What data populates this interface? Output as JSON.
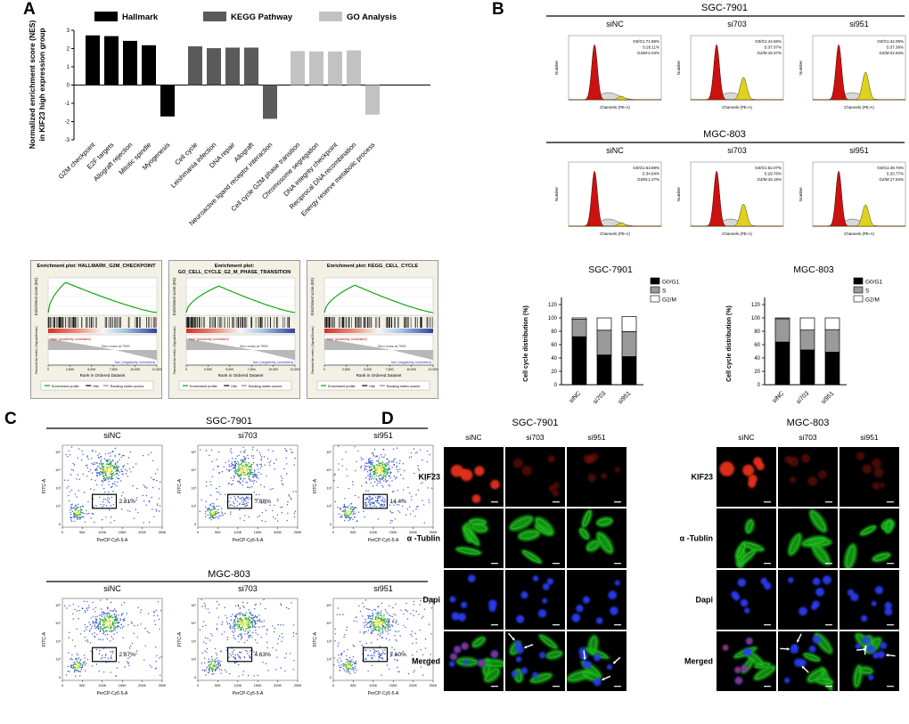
{
  "panelA": {
    "label": "A",
    "legend": [
      {
        "label": "Hallmark",
        "color": "#000000"
      },
      {
        "label": "KEGG Pathway",
        "color": "#5a5a5a"
      },
      {
        "label": "GO Analysis",
        "color": "#c2c2c2"
      }
    ],
    "ylabel_lines": [
      "Normalized enrichment score (NES)",
      "in KIF23 high expression group"
    ],
    "gsea": {
      "es_ylabel": "Enrichment score (ES)",
      "rank_ylabel": "Ranked list metric (Signal2Noise)",
      "xlabel": "Rank in Ordered Dataset",
      "zero_cross": "Zero cross at 7999",
      "pos_label": "'high' (positively correlated)",
      "neg_label": "'low' (negatively correlated)",
      "legend": [
        "Enrichment profile",
        "Hits",
        "Ranking metric scores"
      ],
      "xticks": [
        "0",
        "2,500",
        "5,000",
        "7,500",
        "10,000",
        "12,500"
      ],
      "plots": [
        {
          "title_lines": [
            "Enrichment plot: HALLMARK_G2M_CHECKPOINT"
          ],
          "peak": 0.16,
          "max_es": 0.66
        },
        {
          "title_lines": [
            "Enrichment plot:",
            "GO_CELL_CYCLE_G2_M_PHASE_TRANSITION"
          ],
          "peak": 0.3,
          "max_es": 0.58
        },
        {
          "title_lines": [
            "Enrichment plot: KEGG_CELL_CYCLE"
          ],
          "peak": 0.28,
          "max_es": 0.6
        }
      ]
    }
  },
  "panelB": {
    "label": "B",
    "hist_ylabel": "Number",
    "hist_xlabel": "Channels (PE-A)",
    "cell_lines": [
      {
        "name": "SGC-7901",
        "samples": [
          {
            "name": "siNC",
            "stats": [
              "G0/G1:71.89%",
              "S:26.11%",
              "G2/M:2.04%"
            ],
            "g0g1": 71.89,
            "s": 26.11,
            "g2m": 2.04
          },
          {
            "name": "si703",
            "stats": [
              "G0/G1:44.56%",
              "S:37.07%",
              "G2/M:18.37%"
            ],
            "g0g1": 44.56,
            "s": 37.07,
            "g2m": 18.37
          },
          {
            "name": "si951",
            "stats": [
              "G0/G1:42.09%",
              "S:37.38%",
              "G2/M:22.53%"
            ],
            "g0g1": 42.09,
            "s": 37.38,
            "g2m": 22.53
          }
        ]
      },
      {
        "name": "MGC-803",
        "samples": [
          {
            "name": "siNC",
            "stats": [
              "G0/G1:63.89%",
              "S:34.84%",
              "G2/M:1.27%"
            ],
            "g0g1": 63.89,
            "s": 34.84,
            "g2m": 1.27
          },
          {
            "name": "si703",
            "stats": [
              "G0/G1:52.07%",
              "S:29.78%",
              "G2/M:18.15%"
            ],
            "g0g1": 52.07,
            "s": 29.78,
            "g2m": 18.15
          },
          {
            "name": "si951",
            "stats": [
              "G0/G1:48.70%",
              "S:33.77%",
              "G2/M:17.53%"
            ],
            "g0g1": 48.7,
            "s": 33.77,
            "g2m": 17.53
          }
        ]
      }
    ]
  },
  "panelC": {
    "label": "C",
    "xlabel": "PerCP-Cy5-5-A",
    "ylabel": "FITC-A",
    "xticks": [
      "0",
      "50K",
      "100K",
      "150K",
      "200K",
      "250K"
    ],
    "yticks": [
      "10⁵",
      "10⁴",
      "10³",
      "10²",
      "0"
    ],
    "cell_lines": [
      {
        "name": "SGC-7901",
        "samples": [
          {
            "name": "siNC",
            "gate_pct": "2.81%"
          },
          {
            "name": "si703",
            "gate_pct": "7.88%"
          },
          {
            "name": "si951",
            "gate_pct": "14.4%"
          }
        ]
      },
      {
        "name": "MGC-803",
        "samples": [
          {
            "name": "siNC",
            "gate_pct": "2.67%"
          },
          {
            "name": "si703",
            "gate_pct": "4.63%"
          },
          {
            "name": "si951",
            "gate_pct": "7.60%"
          }
        ]
      }
    ]
  },
  "panelD": {
    "label": "D",
    "grids": [
      {
        "name": "SGC-7901",
        "columns": [
          "siNC",
          "si703",
          "si951"
        ],
        "rows": [
          "KIF23",
          "α -Tublin",
          "Dapi",
          "Merged"
        ]
      },
      {
        "name": "MGC-803",
        "columns": [
          "siNC",
          "si703",
          "si951"
        ],
        "rows": [
          "KIF23",
          "α -Tublin",
          "Dapi",
          "Merged"
        ]
      }
    ]
  },
  "chart_data": [
    {
      "id": "nes",
      "type": "bar",
      "title": "",
      "xlabel": "",
      "ylabel": "Normalized enrichment score (NES) in KIF23 high expression group",
      "ylim": [
        -3,
        3
      ],
      "yticks": [
        -3,
        -2,
        -1,
        0,
        1,
        2,
        3
      ],
      "legend_position": "top",
      "groups": [
        {
          "name": "Hallmark",
          "color": "#000000",
          "items": [
            {
              "category": "G2M checkpoint",
              "nes": 2.72
            },
            {
              "category": "E2F targets",
              "nes": 2.68
            },
            {
              "category": "Allograft rejection",
              "nes": 2.42
            },
            {
              "category": "Mitotic spindle",
              "nes": 2.18
            },
            {
              "category": "Myogenesis",
              "nes": -1.72
            }
          ]
        },
        {
          "name": "KEGG Pathway",
          "color": "#5a5a5a",
          "items": [
            {
              "category": "Cell cycle",
              "nes": 2.12
            },
            {
              "category": "Leishmania infection",
              "nes": 2.02
            },
            {
              "category": "DNA repair",
              "nes": 2.05
            },
            {
              "category": "Allograft",
              "nes": 2.05
            },
            {
              "category": "Neuroactive ligand receptor interaction",
              "nes": -1.85
            }
          ]
        },
        {
          "name": "GO Analysis",
          "color": "#c2c2c2",
          "items": [
            {
              "category": "Cell cycle G2M phase transition",
              "nes": 1.86
            },
            {
              "category": "Chromosome segregation",
              "nes": 1.84
            },
            {
              "category": "DNA integrity checkpoint",
              "nes": 1.84
            },
            {
              "category": "Reciprocal DNA recombination",
              "nes": 1.9
            },
            {
              "category": "Energy reserve metabolic process",
              "nes": -1.62
            }
          ]
        }
      ]
    },
    {
      "id": "cycle_sgc7901",
      "type": "bar",
      "stacked": true,
      "title": "SGC-7901",
      "ylabel": "Cell cycle distribution (%)",
      "ylim": [
        0,
        120
      ],
      "yticks": [
        0,
        20,
        40,
        60,
        80,
        100,
        120
      ],
      "categories": [
        "siNC",
        "si703",
        "si951"
      ],
      "legend_position": "top-right",
      "series": [
        {
          "name": "G0/G1",
          "color": "#000000",
          "values": [
            71.89,
            44.56,
            42.09
          ]
        },
        {
          "name": "S",
          "color": "#9a9a9a",
          "values": [
            26.11,
            37.07,
            37.38
          ]
        },
        {
          "name": "G2/M",
          "color": "#ffffff",
          "values": [
            2.04,
            18.37,
            22.53
          ]
        }
      ]
    },
    {
      "id": "cycle_mgc803",
      "type": "bar",
      "stacked": true,
      "title": "MGC-803",
      "ylabel": "Cell cycle distribution (%)",
      "ylim": [
        0,
        120
      ],
      "yticks": [
        0,
        20,
        40,
        60,
        80,
        100,
        120
      ],
      "categories": [
        "siNC",
        "si703",
        "si951"
      ],
      "legend_position": "top-right",
      "series": [
        {
          "name": "G0/G1",
          "color": "#000000",
          "values": [
            63.89,
            52.07,
            48.7
          ]
        },
        {
          "name": "S",
          "color": "#9a9a9a",
          "values": [
            34.84,
            29.78,
            33.77
          ]
        },
        {
          "name": "G2/M",
          "color": "#ffffff",
          "values": [
            1.27,
            18.15,
            17.53
          ]
        }
      ]
    },
    {
      "id": "apoptosis_gate_pct",
      "type": "table",
      "columns": [
        "Cell line",
        "siNC",
        "si703",
        "si951"
      ],
      "rows": [
        [
          "SGC-7901",
          "2.81%",
          "7.88%",
          "14.4%"
        ],
        [
          "MGC-803",
          "2.67%",
          "4.63%",
          "7.60%"
        ]
      ]
    }
  ]
}
